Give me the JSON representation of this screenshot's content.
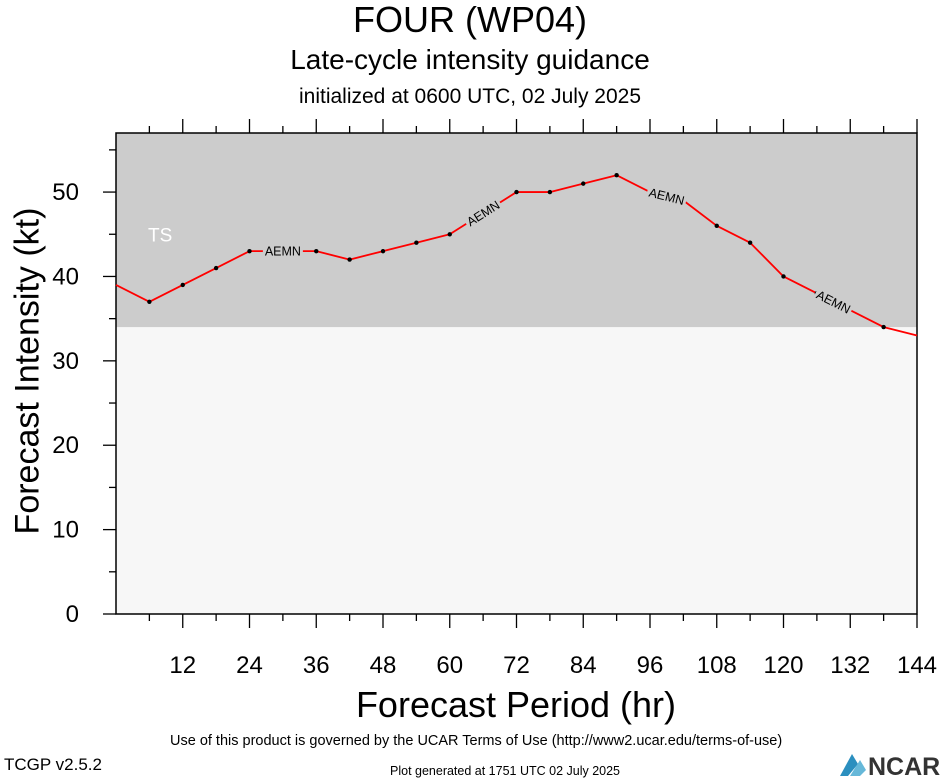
{
  "header": {
    "title": "FOUR (WP04)",
    "subtitle": "Late-cycle intensity guidance",
    "initialized": "initialized at 0600 UTC, 02 July 2025"
  },
  "footer": {
    "terms": "Use of this product is governed by the UCAR Terms of Use (http://www2.ucar.edu/terms-of-use)",
    "version": "TCGP v2.5.2",
    "generated": "Plot generated at 1751 UTC   02 July 2025",
    "logo_text": "NCAR"
  },
  "chart_data": {
    "type": "line",
    "title": "FOUR (WP04)",
    "subtitle": "Late-cycle intensity guidance",
    "xlabel": "Forecast Period (hr)",
    "ylabel": "Forecast Intensity (kt)",
    "xlim": [
      0,
      144
    ],
    "ylim": [
      0,
      57
    ],
    "xticks": [
      12,
      24,
      36,
      48,
      60,
      72,
      84,
      96,
      108,
      120,
      132,
      144
    ],
    "yticks": [
      0,
      10,
      20,
      30,
      40,
      50
    ],
    "grid": false,
    "bands": [
      {
        "label": "TS",
        "from": 34,
        "to": 57,
        "color": "#cccccc"
      }
    ],
    "below_band_color": "#f7f7f7",
    "series": [
      {
        "name": "AEMN",
        "color": "#ff0000",
        "x": [
          0,
          6,
          12,
          18,
          24,
          30,
          36,
          42,
          48,
          54,
          60,
          66,
          72,
          78,
          84,
          90,
          96,
          102,
          108,
          114,
          120,
          126,
          132,
          138,
          144
        ],
        "y": [
          39,
          37,
          39,
          41,
          43,
          43,
          43,
          42,
          43,
          44,
          45,
          47.5,
          50,
          50,
          51,
          52,
          50,
          49,
          46,
          44,
          40,
          38,
          36,
          34,
          33
        ],
        "marker_x": [
          6,
          12,
          18,
          24,
          36,
          42,
          48,
          54,
          60,
          72,
          78,
          84,
          90,
          96,
          102,
          108,
          114,
          120,
          126,
          138
        ],
        "label_x": [
          30,
          66,
          99,
          129
        ]
      }
    ]
  }
}
